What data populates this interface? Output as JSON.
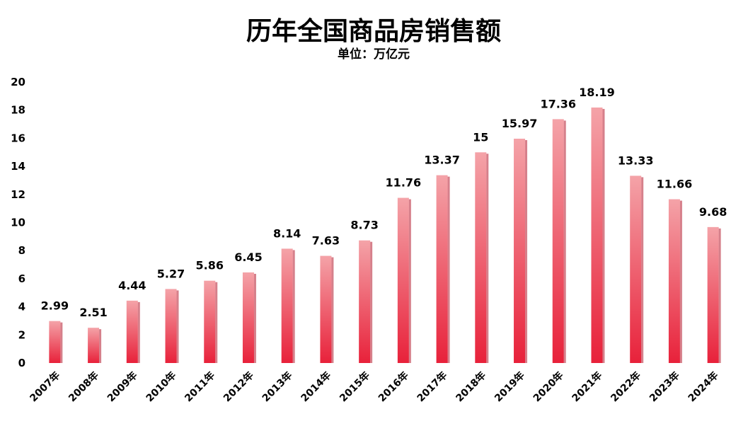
{
  "chart_data": {
    "type": "bar",
    "title": "历年全国商品房销售额",
    "subtitle": "单位：万亿元",
    "categories": [
      "2007年",
      "2008年",
      "2009年",
      "2010年",
      "2011年",
      "2012年",
      "2013年",
      "2014年",
      "2015年",
      "2016年",
      "2017年",
      "2018年",
      "2019年",
      "2020年",
      "2021年",
      "2022年",
      "2023年",
      "2024年"
    ],
    "values": [
      2.99,
      2.51,
      4.44,
      5.27,
      5.86,
      6.45,
      8.14,
      7.63,
      8.73,
      11.76,
      13.37,
      15,
      15.97,
      17.36,
      18.19,
      13.33,
      11.66,
      9.68
    ],
    "data_labels": [
      "2.99",
      "2.51",
      "4.44",
      "5.27",
      "5.86",
      "6.45",
      "8.14",
      "7.63",
      "8.73",
      "11.76",
      "13.37",
      "15",
      "15.97",
      "17.36",
      "18.19",
      "13.33",
      "11.66",
      "9.68"
    ],
    "ylim": [
      0,
      20
    ],
    "yticks": [
      "0",
      "2",
      "4",
      "6",
      "8",
      "10",
      "12",
      "14",
      "16",
      "18",
      "20"
    ],
    "xlabel": "",
    "ylabel": "",
    "grid": false,
    "legend": "none",
    "colors": {
      "bar_top": "#f4a3a8",
      "bar_bottom": "#e8213a",
      "bar_side": "#b5182b"
    }
  }
}
